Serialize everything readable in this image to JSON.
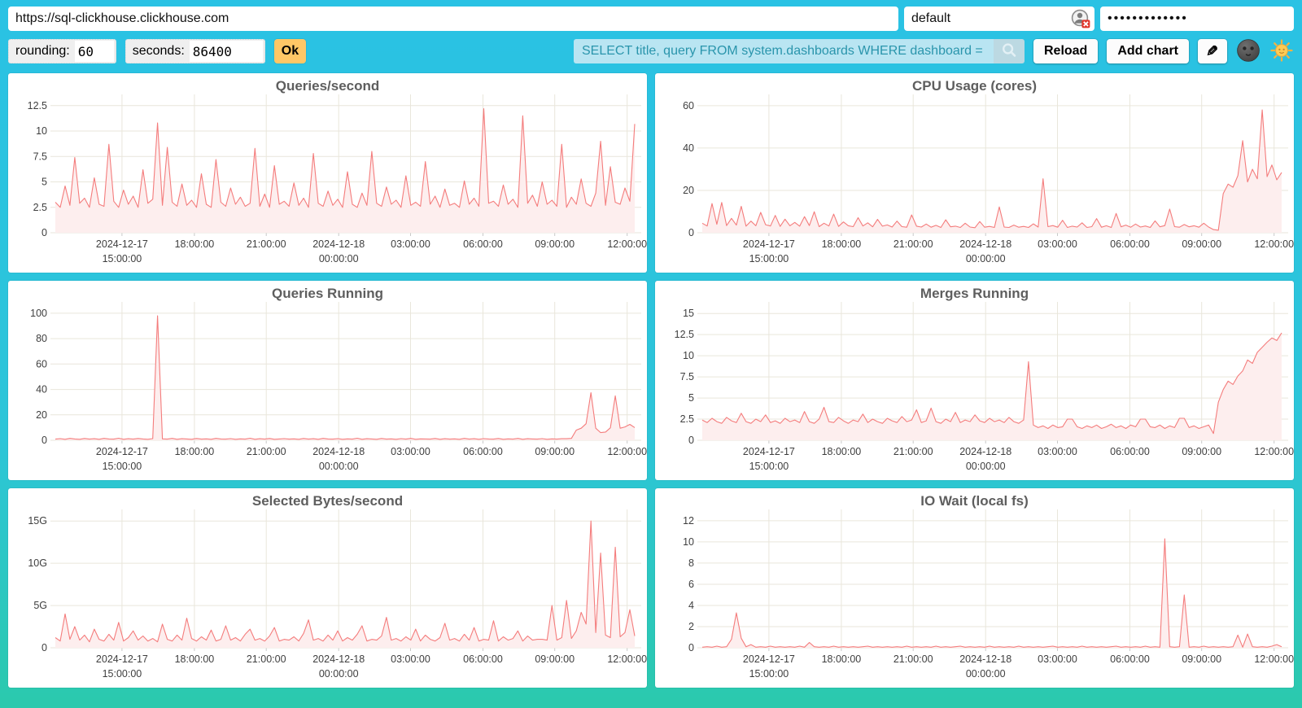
{
  "connection": {
    "url": "https://sql-clickhouse.clickhouse.com",
    "user": "default",
    "password_masked": "•••••••••••••"
  },
  "controls": {
    "rounding_label": "rounding:",
    "rounding_value": "60",
    "seconds_label": "seconds:",
    "seconds_value": "86400",
    "ok_label": "Ok",
    "search_query": "SELECT title, query FROM system.dashboards WHERE dashboard = '",
    "reload_label": "Reload",
    "add_chart_label": "Add chart",
    "icons": {
      "search": "magnifier",
      "edit": "pencil",
      "theme_dark": "new-moon-face",
      "theme_light": "sun-with-face",
      "user_field_badge": "user-circle-red-x"
    }
  },
  "colors": {
    "background_top": "#2ac2e4",
    "background_bottom": "#2bc9ad",
    "card": "#ffffff",
    "query_bg": "#b9e5f2",
    "query_text": "#2a95ac",
    "ok_button": "#ffc766",
    "series_line": "#f47c7c",
    "series_fill": "#fdeeee",
    "grid": "#e9e6db",
    "tick_stub": "#c9c9c9",
    "title_text": "#5e5e5e",
    "tick_text": "#3e3e3e"
  },
  "x_axis": {
    "fractions": [
      0.115,
      0.24,
      0.364,
      0.489,
      0.613,
      0.738,
      0.862,
      0.987
    ],
    "labels": [
      [
        "2024-12-17",
        "15:00:00"
      ],
      [
        "18:00:00"
      ],
      [
        "21:00:00"
      ],
      [
        "2024-12-18",
        "00:00:00"
      ],
      [
        "03:00:00"
      ],
      [
        "06:00:00"
      ],
      [
        "09:00:00"
      ],
      [
        "12:00:00"
      ]
    ]
  },
  "chart_data": [
    {
      "title": "Queries/second",
      "type": "area",
      "ytick_values": [
        0,
        2.5,
        5,
        7.5,
        10,
        12.5
      ],
      "ytick_labels": [
        "0",
        "2.5",
        "5",
        "7.5",
        "10",
        "12.5"
      ],
      "ymax": 12.8,
      "ylim": [
        0,
        12.8
      ],
      "points": [
        3.0,
        2.5,
        4.6,
        2.7,
        7.4,
        2.9,
        3.4,
        2.5,
        5.4,
        2.8,
        2.6,
        8.7,
        3.1,
        2.5,
        4.2,
        2.8,
        3.6,
        2.5,
        6.2,
        2.9,
        3.3,
        10.8,
        2.7,
        8.4,
        3.0,
        2.6,
        4.8,
        2.7,
        3.2,
        2.5,
        5.8,
        2.8,
        2.5,
        7.2,
        3.0,
        2.6,
        4.4,
        2.8,
        3.5,
        2.6,
        2.9,
        8.3,
        2.6,
        3.8,
        2.5,
        6.6,
        2.8,
        3.1,
        2.6,
        4.9,
        2.7,
        3.4,
        2.5,
        7.8,
        2.9,
        2.6,
        4.1,
        2.7,
        3.3,
        2.5,
        6.0,
        2.8,
        2.5,
        3.9,
        2.7,
        8.0,
        2.9,
        2.6,
        4.5,
        2.8,
        3.2,
        2.5,
        5.6,
        2.7,
        3.0,
        2.6,
        7.0,
        2.8,
        3.6,
        2.5,
        4.3,
        2.7,
        2.9,
        2.5,
        5.1,
        2.8,
        3.4,
        2.6,
        12.2,
        2.9,
        3.1,
        2.6,
        4.7,
        2.8,
        3.3,
        2.5,
        11.5,
        2.9,
        3.7,
        2.6,
        5.0,
        2.8,
        3.2,
        2.6,
        8.7,
        2.5,
        3.5,
        2.8,
        5.3,
        2.9,
        2.6,
        3.9,
        9.0,
        2.7,
        6.5,
        3.0,
        2.8,
        4.4,
        3.1,
        10.7
      ]
    },
    {
      "title": "CPU Usage (cores)",
      "type": "area",
      "ytick_values": [
        0,
        20,
        40,
        60
      ],
      "ytick_labels": [
        "0",
        "20",
        "40",
        "60"
      ],
      "ymax": 61.5,
      "ylim": [
        0,
        61.5
      ],
      "points": [
        4.5,
        3.2,
        13.8,
        4.0,
        14.3,
        3.4,
        6.8,
        3.6,
        12.5,
        3.1,
        5.5,
        3.3,
        9.6,
        3.8,
        3.2,
        8.2,
        3.0,
        6.4,
        3.3,
        4.9,
        3.1,
        7.6,
        3.4,
        9.9,
        2.9,
        4.5,
        3.2,
        8.8,
        3.0,
        5.1,
        3.3,
        2.9,
        7.1,
        3.2,
        4.7,
        2.8,
        6.3,
        3.1,
        3.7,
        2.7,
        5.5,
        2.9,
        2.6,
        8.4,
        3.1,
        2.7,
        4.1,
        2.6,
        3.5,
        2.5,
        6.1,
        2.8,
        3.1,
        2.5,
        4.5,
        2.7,
        2.4,
        5.3,
        2.6,
        3.0,
        2.5,
        12.2,
        2.7,
        2.5,
        3.6,
        2.6,
        3.0,
        2.5,
        4.2,
        2.7,
        25.5,
        2.9,
        3.4,
        2.6,
        5.9,
        2.5,
        3.1,
        2.7,
        4.7,
        2.5,
        2.9,
        6.7,
        2.6,
        3.3,
        2.5,
        9.1,
        2.8,
        3.6,
        2.6,
        4.1,
        2.7,
        3.2,
        2.5,
        5.6,
        2.8,
        3.4,
        11.2,
        2.9,
        2.6,
        3.9,
        2.8,
        3.3,
        2.6,
        4.5,
        2.7,
        1.5,
        1.2,
        18.5,
        23.0,
        21.5,
        27.0,
        43.5,
        24.0,
        30.0,
        25.5,
        58.0,
        26.5,
        32.0,
        25.0,
        28.5
      ]
    },
    {
      "title": "Queries Running",
      "type": "area",
      "ytick_values": [
        0,
        20,
        40,
        60,
        80,
        100
      ],
      "ytick_labels": [
        "0",
        "20",
        "40",
        "60",
        "80",
        "100"
      ],
      "ymax": 102.5,
      "ylim": [
        0,
        102.5
      ],
      "points": [
        0.9,
        1.3,
        0.8,
        1.5,
        1.0,
        0.8,
        1.4,
        0.9,
        1.2,
        0.8,
        1.5,
        1.0,
        0.9,
        1.6,
        0.8,
        1.2,
        0.9,
        1.4,
        1.0,
        0.8,
        1.3,
        98.0,
        1.1,
        0.9,
        1.5,
        0.8,
        1.2,
        1.0,
        0.8,
        1.4,
        0.9,
        1.1,
        0.8,
        1.5,
        1.0,
        0.9,
        1.3,
        0.8,
        1.1,
        0.9,
        1.6,
        0.8,
        1.2,
        0.9,
        1.4,
        0.8,
        1.0,
        1.3,
        0.9,
        1.1,
        0.8,
        1.4,
        0.9,
        1.2,
        0.8,
        1.5,
        1.0,
        0.9,
        1.3,
        0.8,
        1.1,
        0.9,
        1.6,
        0.8,
        1.2,
        1.0,
        0.8,
        1.4,
        0.9,
        1.1,
        0.8,
        1.3,
        0.9,
        1.5,
        0.8,
        1.1,
        1.0,
        0.9,
        1.4,
        0.8,
        1.2,
        0.9,
        1.1,
        0.8,
        1.5,
        0.9,
        1.2,
        0.8,
        1.3,
        1.0,
        0.9,
        1.4,
        0.8,
        1.1,
        0.9,
        1.5,
        0.8,
        1.2,
        1.0,
        0.9,
        1.3,
        0.8,
        1.1,
        0.9,
        1.2,
        1.2,
        1.5,
        8.0,
        9.5,
        13.0,
        37.5,
        9.5,
        6.0,
        6.5,
        9.8,
        35.0,
        9.5,
        10.5,
        12.5,
        10.0
      ]
    },
    {
      "title": "Merges Running",
      "type": "area",
      "ytick_values": [
        0,
        2.5,
        5,
        7.5,
        10,
        12.5,
        15
      ],
      "ytick_labels": [
        "0",
        "2.5",
        "5",
        "7.5",
        "10",
        "12.5",
        "15"
      ],
      "ymax": 15.4,
      "ylim": [
        0,
        15.4
      ],
      "points": [
        2.4,
        2.1,
        2.6,
        2.2,
        2.0,
        2.7,
        2.3,
        2.1,
        3.2,
        2.2,
        2.0,
        2.5,
        2.2,
        3.0,
        2.1,
        2.3,
        2.0,
        2.6,
        2.2,
        2.4,
        2.1,
        3.4,
        2.2,
        2.0,
        2.5,
        3.9,
        2.2,
        2.1,
        2.7,
        2.3,
        2.0,
        2.4,
        2.2,
        3.1,
        2.1,
        2.5,
        2.2,
        2.0,
        2.6,
        2.3,
        2.1,
        2.8,
        2.2,
        2.4,
        3.6,
        2.1,
        2.3,
        3.8,
        2.2,
        2.0,
        2.5,
        2.2,
        3.3,
        2.1,
        2.4,
        2.2,
        3.0,
        2.3,
        2.1,
        2.6,
        2.2,
        2.4,
        2.1,
        2.7,
        2.2,
        2.0,
        2.4,
        9.3,
        1.8,
        1.5,
        1.7,
        1.4,
        1.8,
        1.5,
        1.6,
        2.5,
        2.5,
        1.6,
        1.4,
        1.7,
        1.5,
        1.8,
        1.4,
        1.6,
        1.9,
        1.5,
        1.7,
        1.4,
        1.8,
        1.6,
        2.5,
        2.5,
        1.6,
        1.5,
        1.8,
        1.4,
        1.7,
        1.5,
        2.6,
        2.6,
        1.5,
        1.7,
        1.4,
        1.6,
        1.8,
        0.8,
        4.5,
        6.0,
        7.0,
        6.6,
        7.6,
        8.2,
        9.5,
        9.1,
        10.4,
        11.0,
        11.6,
        12.1,
        11.8,
        12.7
      ]
    },
    {
      "title": "Selected Bytes/second",
      "type": "area",
      "ytick_values": [
        0,
        5,
        10,
        15
      ],
      "ytick_labels": [
        "0",
        "5G",
        "10G",
        "15G"
      ],
      "ymax": 15.4,
      "ylim": [
        0,
        15.4
      ],
      "unit": "G",
      "points": [
        1.2,
        0.8,
        4.0,
        1.0,
        2.5,
        0.9,
        1.5,
        0.7,
        2.2,
        1.0,
        0.8,
        1.6,
        0.9,
        3.0,
        0.8,
        1.2,
        2.0,
        0.9,
        1.4,
        0.8,
        1.1,
        0.7,
        2.8,
        1.0,
        0.8,
        1.5,
        0.9,
        3.5,
        1.1,
        0.8,
        1.3,
        0.9,
        2.1,
        0.8,
        1.0,
        2.6,
        0.9,
        1.2,
        0.8,
        1.6,
        2.2,
        0.9,
        1.1,
        0.8,
        1.4,
        2.4,
        0.8,
        1.0,
        0.9,
        1.3,
        0.8,
        1.7,
        3.3,
        0.9,
        1.1,
        0.8,
        1.5,
        0.9,
        2.0,
        0.8,
        1.2,
        0.9,
        1.6,
        2.6,
        0.8,
        1.0,
        0.9,
        1.4,
        3.6,
        0.9,
        1.1,
        0.8,
        1.3,
        0.9,
        2.2,
        0.8,
        1.5,
        1.0,
        0.8,
        1.2,
        2.9,
        0.9,
        1.1,
        0.8,
        1.6,
        0.9,
        2.4,
        0.8,
        1.0,
        0.9,
        3.2,
        0.8,
        1.3,
        0.9,
        1.1,
        2.0,
        0.8,
        1.4,
        0.9,
        1.0,
        1.0,
        0.9,
        5.0,
        0.9,
        1.2,
        5.6,
        1.1,
        2.0,
        4.2,
        2.8,
        15.0,
        1.8,
        11.2,
        1.5,
        1.2,
        11.9,
        1.3,
        1.8,
        4.5,
        1.4
      ]
    },
    {
      "title": "IO Wait (local fs)",
      "type": "area",
      "ytick_values": [
        0,
        2,
        4,
        6,
        8,
        10,
        12
      ],
      "ytick_labels": [
        "0",
        "2",
        "4",
        "6",
        "8",
        "10",
        "12"
      ],
      "ymax": 12.3,
      "ylim": [
        0,
        12.3
      ],
      "points": [
        0.05,
        0.1,
        0.05,
        0.15,
        0.05,
        0.1,
        0.8,
        3.3,
        0.9,
        0.1,
        0.3,
        0.05,
        0.1,
        0.05,
        0.15,
        0.05,
        0.1,
        0.05,
        0.1,
        0.05,
        0.15,
        0.05,
        0.5,
        0.1,
        0.05,
        0.1,
        0.05,
        0.15,
        0.05,
        0.1,
        0.05,
        0.1,
        0.05,
        0.1,
        0.15,
        0.05,
        0.1,
        0.05,
        0.1,
        0.05,
        0.1,
        0.05,
        0.15,
        0.05,
        0.1,
        0.05,
        0.1,
        0.05,
        0.15,
        0.05,
        0.1,
        0.05,
        0.1,
        0.15,
        0.05,
        0.1,
        0.05,
        0.1,
        0.05,
        0.15,
        0.05,
        0.1,
        0.05,
        0.1,
        0.05,
        0.15,
        0.05,
        0.1,
        0.05,
        0.1,
        0.05,
        0.1,
        0.15,
        0.05,
        0.1,
        0.05,
        0.1,
        0.05,
        0.15,
        0.05,
        0.1,
        0.05,
        0.1,
        0.05,
        0.1,
        0.15,
        0.05,
        0.1,
        0.05,
        0.1,
        0.05,
        0.15,
        0.05,
        0.1,
        0.05,
        10.3,
        0.1,
        0.05,
        0.1,
        5.0,
        0.05,
        0.1,
        0.05,
        0.15,
        0.05,
        0.1,
        0.05,
        0.1,
        0.05,
        0.1,
        1.2,
        0.05,
        1.3,
        0.1,
        0.05,
        0.1,
        0.05,
        0.15,
        0.3,
        0.1
      ]
    }
  ]
}
